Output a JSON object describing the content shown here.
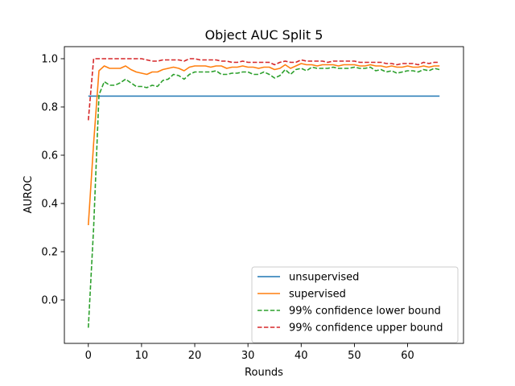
{
  "chart_data": {
    "type": "line",
    "title": "Object AUC Split 5",
    "xlabel": "Rounds",
    "ylabel": "AUROC",
    "xlim": [
      -4.5,
      70.5
    ],
    "ylim": [
      -0.18,
      1.05
    ],
    "xticks": [
      0,
      10,
      20,
      30,
      40,
      50,
      60
    ],
    "yticks": [
      0.0,
      0.2,
      0.4,
      0.6,
      0.8,
      1.0
    ],
    "ytick_labels": [
      "0.0",
      "0.2",
      "0.4",
      "0.6",
      "0.8",
      "1.0"
    ],
    "grid": false,
    "legend_position": "lower-right",
    "x": [
      0,
      1,
      2,
      3,
      4,
      5,
      6,
      7,
      8,
      9,
      10,
      11,
      12,
      13,
      14,
      15,
      16,
      17,
      18,
      19,
      20,
      21,
      22,
      23,
      24,
      25,
      26,
      27,
      28,
      29,
      30,
      31,
      32,
      33,
      34,
      35,
      36,
      37,
      38,
      39,
      40,
      41,
      42,
      43,
      44,
      45,
      46,
      47,
      48,
      49,
      50,
      51,
      52,
      53,
      54,
      55,
      56,
      57,
      58,
      59,
      60,
      61,
      62,
      63,
      64,
      65,
      66
    ],
    "series": [
      {
        "name": "unsupervised",
        "color": "#1f77b4",
        "style": "solid",
        "values": [
          0.845,
          0.845,
          0.845,
          0.845,
          0.845,
          0.845,
          0.845,
          0.845,
          0.845,
          0.845,
          0.845,
          0.845,
          0.845,
          0.845,
          0.845,
          0.845,
          0.845,
          0.845,
          0.845,
          0.845,
          0.845,
          0.845,
          0.845,
          0.845,
          0.845,
          0.845,
          0.845,
          0.845,
          0.845,
          0.845,
          0.845,
          0.845,
          0.845,
          0.845,
          0.845,
          0.845,
          0.845,
          0.845,
          0.845,
          0.845,
          0.845,
          0.845,
          0.845,
          0.845,
          0.845,
          0.845,
          0.845,
          0.845,
          0.845,
          0.845,
          0.845,
          0.845,
          0.845,
          0.845,
          0.845,
          0.845,
          0.845,
          0.845,
          0.845,
          0.845,
          0.845,
          0.845,
          0.845,
          0.845,
          0.845,
          0.845,
          0.845
        ]
      },
      {
        "name": "supervised",
        "color": "#ff7f0e",
        "style": "solid",
        "values": [
          0.31,
          0.65,
          0.95,
          0.97,
          0.96,
          0.96,
          0.96,
          0.97,
          0.955,
          0.945,
          0.94,
          0.935,
          0.945,
          0.945,
          0.955,
          0.96,
          0.965,
          0.96,
          0.95,
          0.965,
          0.97,
          0.97,
          0.97,
          0.965,
          0.97,
          0.97,
          0.96,
          0.965,
          0.965,
          0.97,
          0.965,
          0.965,
          0.96,
          0.965,
          0.965,
          0.955,
          0.96,
          0.975,
          0.96,
          0.97,
          0.98,
          0.975,
          0.975,
          0.97,
          0.975,
          0.975,
          0.975,
          0.97,
          0.975,
          0.975,
          0.975,
          0.97,
          0.97,
          0.975,
          0.97,
          0.97,
          0.965,
          0.97,
          0.965,
          0.965,
          0.97,
          0.965,
          0.965,
          0.97,
          0.965,
          0.97,
          0.97
        ]
      },
      {
        "name": "99% confidence lower bound",
        "color": "#2ca02c",
        "style": "dashed",
        "values": [
          -0.115,
          0.3,
          0.85,
          0.905,
          0.89,
          0.89,
          0.9,
          0.915,
          0.9,
          0.885,
          0.885,
          0.88,
          0.89,
          0.885,
          0.91,
          0.915,
          0.935,
          0.93,
          0.915,
          0.935,
          0.945,
          0.945,
          0.945,
          0.945,
          0.95,
          0.935,
          0.935,
          0.94,
          0.94,
          0.945,
          0.945,
          0.935,
          0.935,
          0.945,
          0.935,
          0.92,
          0.93,
          0.955,
          0.935,
          0.955,
          0.96,
          0.95,
          0.965,
          0.96,
          0.96,
          0.96,
          0.965,
          0.96,
          0.96,
          0.96,
          0.965,
          0.96,
          0.96,
          0.965,
          0.95,
          0.955,
          0.945,
          0.95,
          0.94,
          0.945,
          0.95,
          0.95,
          0.945,
          0.955,
          0.95,
          0.96,
          0.955
        ]
      },
      {
        "name": "99% confidence upper bound",
        "color": "#d62728",
        "style": "dashed",
        "values": [
          0.745,
          1.0,
          1.0,
          1.0,
          1.0,
          1.0,
          1.0,
          1.0,
          1.0,
          1.0,
          1.0,
          0.995,
          0.99,
          0.99,
          0.995,
          0.995,
          0.995,
          0.995,
          0.99,
          1.0,
          1.0,
          0.995,
          0.995,
          0.995,
          0.995,
          0.99,
          0.99,
          0.985,
          0.985,
          0.99,
          0.985,
          0.985,
          0.985,
          0.985,
          0.985,
          0.975,
          0.985,
          0.99,
          0.985,
          0.985,
          0.995,
          0.99,
          0.99,
          0.99,
          0.99,
          0.985,
          0.99,
          0.99,
          0.99,
          0.99,
          0.99,
          0.985,
          0.985,
          0.985,
          0.985,
          0.985,
          0.98,
          0.98,
          0.975,
          0.98,
          0.98,
          0.98,
          0.975,
          0.985,
          0.98,
          0.985,
          0.985
        ]
      }
    ]
  }
}
